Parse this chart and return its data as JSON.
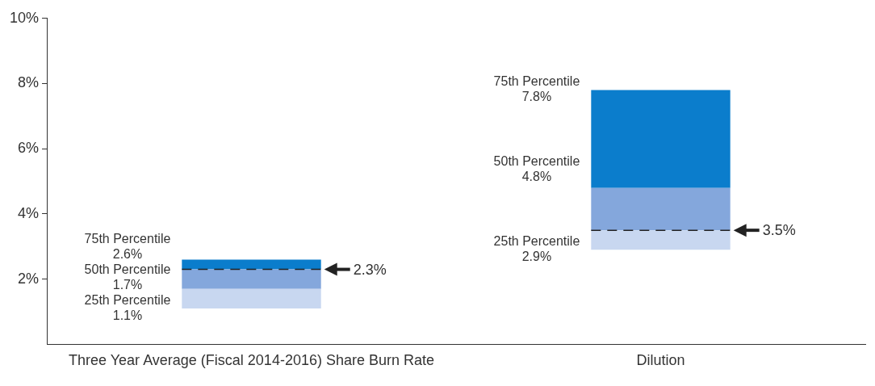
{
  "chart_data": {
    "type": "bar",
    "categories": [
      "Three Year Average (Fiscal 2014-2016) Share Burn Rate",
      "Dilution"
    ],
    "series": [
      {
        "color": "#c8d7f0",
        "base": [
          1.1,
          2.9
        ],
        "values": [
          0.6,
          0.6
        ]
      },
      {
        "color": "#84a7dc",
        "base": [
          1.7,
          3.5
        ],
        "values": [
          0.6,
          1.3
        ]
      },
      {
        "color": "#0b7dcc",
        "base": [
          2.3,
          4.8
        ],
        "values": [
          0.3,
          3.0
        ]
      }
    ],
    "ylim": [
      0,
      10
    ],
    "yticks": [
      {
        "value": 2,
        "label": "2%"
      },
      {
        "value": 4,
        "label": "4%"
      },
      {
        "value": 6,
        "label": "6%"
      },
      {
        "value": 8,
        "label": "8%"
      },
      {
        "value": 10,
        "label": "10%"
      }
    ],
    "grid": false,
    "legend": false,
    "annotations": [
      "75th Percentile\n2.6%",
      "50th Percentile\n1.7%",
      "25th Percentile\n1.1%",
      "75th Percentile\n7.8%",
      "50th Percentile\n4.8%",
      "25th Percentile\n2.9%"
    ],
    "ref_lines": [
      {
        "axis": "y",
        "value": 2.3,
        "label": "2.3%",
        "color": "#222222",
        "line_style": "dashed"
      },
      {
        "axis": "y",
        "value": 3.5,
        "label": "3.5%",
        "color": "#222222",
        "line_style": "dashed"
      }
    ]
  }
}
